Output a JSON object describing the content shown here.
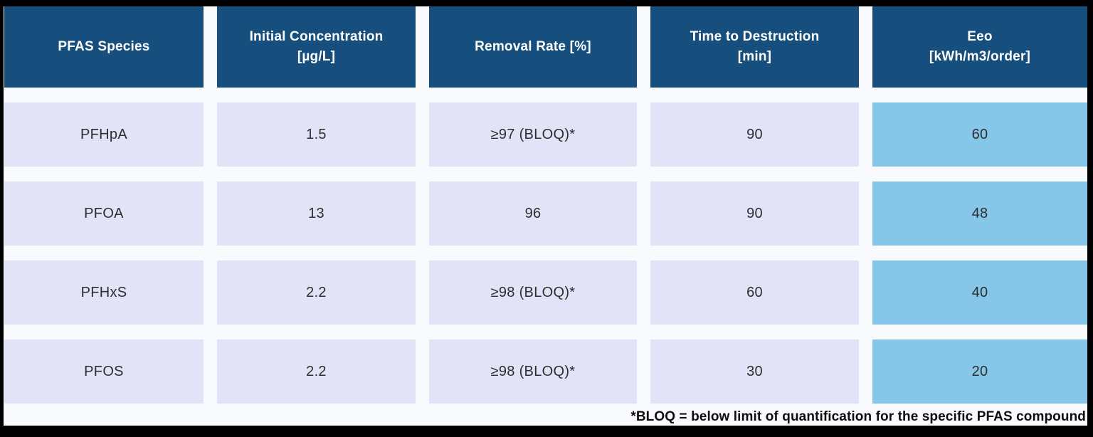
{
  "colors": {
    "frame": "#000000",
    "background": "#f8fafd",
    "header_bg": "#164e7e",
    "header_text": "#ffffff",
    "row_bg": "#e3e3f8",
    "eeo_bg": "#85c6e9",
    "cell_text": "#2e2e2e",
    "footnote_text": "#0d0d0d"
  },
  "table": {
    "columns": [
      "PFAS Species",
      "Initial Concentration\n[µg/L]",
      "Removal Rate [%]",
      "Time to Destruction\n[min]",
      "Eeo\n[kWh/m3/order]"
    ],
    "rows": [
      {
        "species": "PFHpA",
        "initial_concentration": "1.5",
        "removal_rate": "≥97 (BLOQ)*",
        "time_to_destruction": "90",
        "eeo": "60"
      },
      {
        "species": "PFOA",
        "initial_concentration": "13",
        "removal_rate": "96",
        "time_to_destruction": "90",
        "eeo": "48"
      },
      {
        "species": "PFHxS",
        "initial_concentration": "2.2",
        "removal_rate": "≥98 (BLOQ)*",
        "time_to_destruction": "60",
        "eeo": "40"
      },
      {
        "species": "PFOS",
        "initial_concentration": "2.2",
        "removal_rate": "≥98 (BLOQ)*",
        "time_to_destruction": "30",
        "eeo": "20"
      }
    ]
  },
  "footnote": "*BLOQ = below limit of quantification for the specific PFAS compound"
}
